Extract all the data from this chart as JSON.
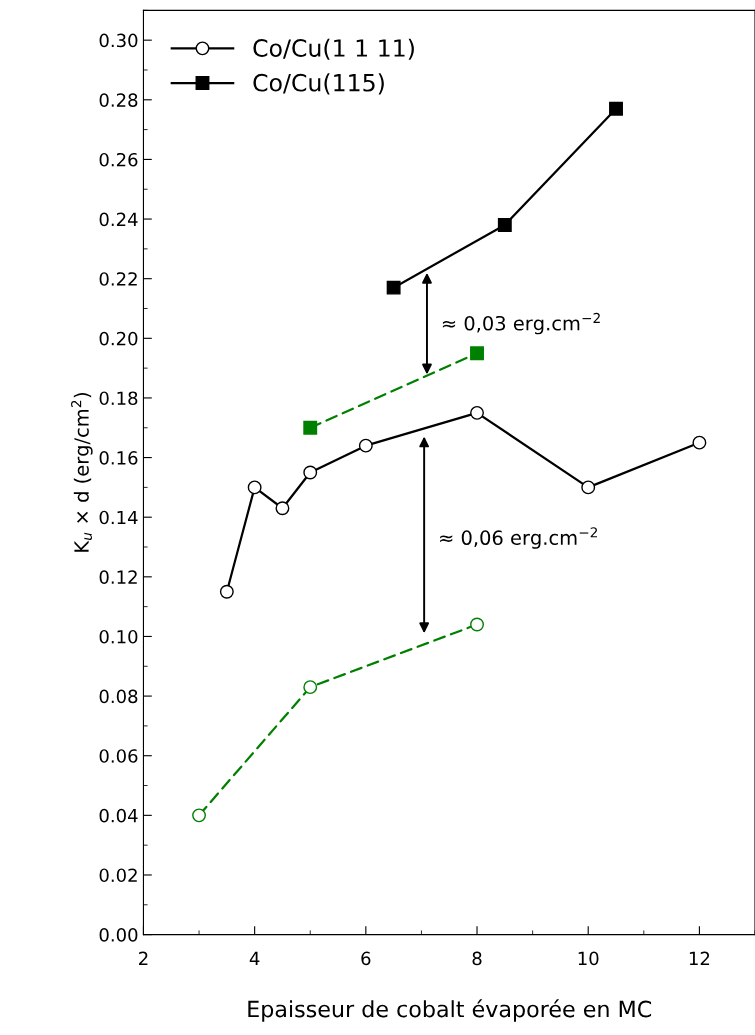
{
  "chart_data": {
    "type": "line",
    "xlabel": "Epaisseur de cobalt évaporée en MC",
    "ylabel": "K$_{u}$ × d (erg/cm$^{2}$)",
    "xlim": [
      2,
      13
    ],
    "ylim": [
      0,
      0.31
    ],
    "xticks": [
      2,
      4,
      6,
      8,
      10,
      12
    ],
    "yticks": [
      {
        "value": 0,
        "label": "0.00"
      },
      {
        "value": 0.02,
        "label": "0.02"
      },
      {
        "value": 0.04,
        "label": "0.04"
      },
      {
        "value": 0.06,
        "label": "0.06"
      },
      {
        "value": 0.08,
        "label": "0.08"
      },
      {
        "value": 0.1,
        "label": "0.10"
      },
      {
        "value": 0.12,
        "label": "0.12"
      },
      {
        "value": 0.14,
        "label": "0.14"
      },
      {
        "value": 0.16,
        "label": "0.16"
      },
      {
        "value": 0.18,
        "label": "0.18"
      },
      {
        "value": 0.2,
        "label": "0.20"
      },
      {
        "value": 0.22,
        "label": "0.22"
      },
      {
        "value": 0.24,
        "label": "0.24"
      },
      {
        "value": 0.26,
        "label": "0.26"
      },
      {
        "value": 0.28,
        "label": "0.28"
      },
      {
        "value": 0.3,
        "label": "0.30"
      }
    ],
    "grid": false,
    "legend": "top left",
    "series": [
      {
        "name": "Co/Cu(1 1 11)",
        "color": "#000000",
        "marker": "circle",
        "line_style": "solid",
        "x": [
          3.5,
          4,
          4.5,
          5,
          6,
          8,
          10,
          12
        ],
        "values": [
          0.115,
          0.15,
          0.143,
          0.155,
          0.164,
          0.175,
          0.15,
          0.165
        ]
      },
      {
        "name": "Co/Cu(115)",
        "color": "#000000",
        "marker": "square",
        "line_style": "solid",
        "x": [
          6.5,
          8.5,
          10.5
        ],
        "values": [
          0.217,
          0.238,
          0.277
        ]
      },
      {
        "color": "#008000",
        "marker": "square",
        "line_style": "dashed",
        "x": [
          5,
          8
        ],
        "values": [
          0.17,
          0.195
        ]
      },
      {
        "color": "#008000",
        "marker": "circle",
        "line_style": "dashed",
        "x": [
          3,
          5,
          8
        ],
        "values": [
          0.04,
          0.083,
          0.104
        ]
      }
    ],
    "annotations": [
      "≈ 0,03 erg.cm$^{−2}$",
      "≈ 0,06 erg.cm$^{−2}$"
    ]
  }
}
